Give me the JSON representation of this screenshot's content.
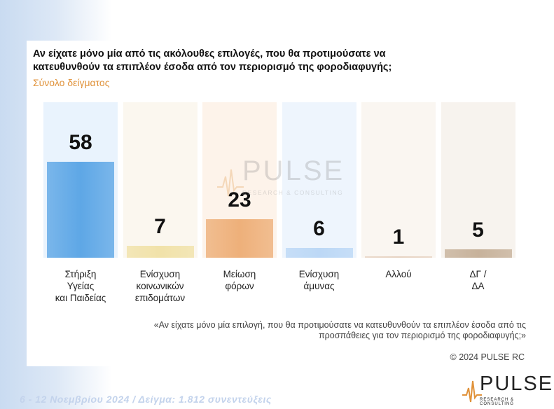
{
  "title": "Αν είχατε μόνο μία από τις ακόλουθες επιλογές, που θα προτιμούσατε να κατευθυνθούν τα επιπλέον έσοδα από τον περιορισμό της φοροδιαφυγής;",
  "subtitle": "Σύνολο δείγματος",
  "watermark": {
    "name": "PULSE",
    "tagline": "RESEARCH & CONSULTING"
  },
  "quote": "«Αν είχατε μόνο μία επιλογή, που θα προτιμούσατε να κατευθυνθούν τα επιπλέον έσοδα από τις προσπάθειες για τον περιορισμό της φοροδιαφυγής;»",
  "copyright": "© 2024 PULSE RC",
  "footer": "6 - 12  Νοεμβρίου  2024  /  Δείγμα:  1.812 συνεντεύξεις",
  "logo": {
    "name": "PULSE",
    "tagline": "RESEARCH & CONSULTING"
  },
  "chart_data": {
    "type": "bar",
    "categories": [
      "Στήριξη\nΥγείας\nκαι Παιδείας",
      "Ενίσχυση\nκοινωνικών\nεπιδομάτων",
      "Μείωση\nφόρων",
      "Ενίσχυση\nάμυνας",
      "Αλλού",
      "ΔΓ /\nΔΑ"
    ],
    "values": [
      58,
      7,
      23,
      6,
      1,
      5
    ],
    "value_labels": [
      "58",
      "7",
      "23",
      "6",
      "1",
      "5"
    ],
    "ylim": [
      0,
      100
    ],
    "grid": false,
    "legend": "none",
    "colors": {
      "bars": [
        "#5ea7e6",
        "#f1e2a9",
        "#eeb07a",
        "#bcd8f6",
        "#e6d2c1",
        "#c7b29b"
      ],
      "columns": [
        "#e9f3fd",
        "#fbf7ef",
        "#fdf3ea",
        "#eef5fd",
        "#faf6f1",
        "#f7f3ee"
      ],
      "subtitle": "#e0923a",
      "footer": "#c3d3ec"
    }
  }
}
